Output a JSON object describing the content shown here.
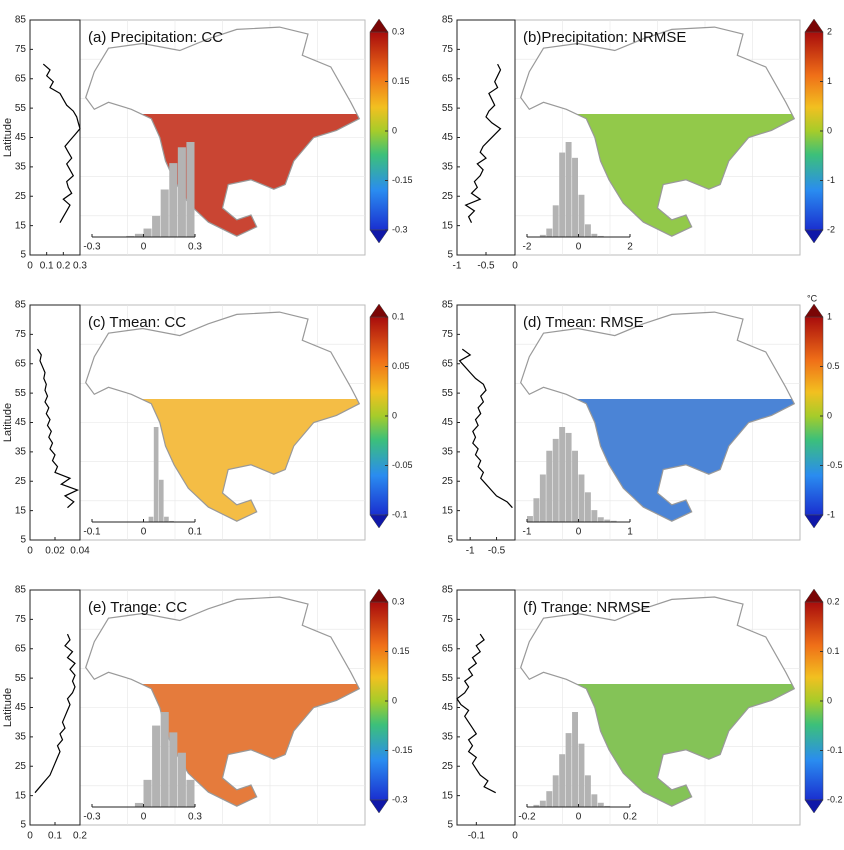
{
  "chart_data": [
    {
      "type": "map",
      "title": "(a) Precipitation: CC",
      "ylabel": "Latitude",
      "color": "#c0250f",
      "ylim": [
        5,
        85
      ],
      "yticks": [
        5,
        15,
        25,
        35,
        45,
        55,
        65,
        75,
        85
      ],
      "xlim": [
        0,
        0.3
      ],
      "xticks": [
        0,
        0.1,
        0.2,
        0.3
      ],
      "profile_lat": [
        16,
        18,
        20,
        22,
        24,
        26,
        28,
        30,
        32,
        34,
        36,
        38,
        40,
        42,
        44,
        46,
        48,
        50,
        52,
        54,
        56,
        58,
        60,
        62,
        64,
        66,
        68,
        70
      ],
      "profile_values": [
        0.18,
        0.2,
        0.22,
        0.24,
        0.2,
        0.25,
        0.23,
        0.22,
        0.26,
        0.24,
        0.22,
        0.25,
        0.23,
        0.21,
        0.24,
        0.27,
        0.3,
        0.29,
        0.28,
        0.26,
        0.22,
        0.2,
        0.18,
        0.12,
        0.14,
        0.1,
        0.12,
        0.08
      ],
      "hist_bins": [
        -0.3,
        -0.25,
        -0.2,
        -0.15,
        -0.1,
        -0.05,
        0,
        0.05,
        0.1,
        0.15,
        0.2,
        0.25,
        0.3
      ],
      "hist_counts": [
        0,
        0,
        0,
        0,
        1,
        3,
        8,
        20,
        45,
        70,
        85,
        90
      ],
      "hist_xticks": [
        -0.3,
        0,
        0.3
      ],
      "cbar_lim": [
        -0.3,
        0.3
      ],
      "cbar_ticks": [
        -0.3,
        -0.15,
        0,
        0.15,
        0.3
      ]
    },
    {
      "type": "map",
      "title": "(b)Precipitation: NRMSE",
      "color": "#7fbf2a",
      "ylim": [
        5,
        85
      ],
      "yticks": [
        5,
        15,
        25,
        35,
        45,
        55,
        65,
        75,
        85
      ],
      "xlim": [
        -1,
        0
      ],
      "xticks": [
        -1,
        -0.5,
        0
      ],
      "profile_lat": [
        16,
        18,
        20,
        22,
        24,
        26,
        28,
        30,
        32,
        34,
        36,
        38,
        40,
        42,
        44,
        46,
        48,
        50,
        52,
        54,
        56,
        58,
        60,
        62,
        64,
        66,
        68,
        70
      ],
      "profile_values": [
        -0.75,
        -0.8,
        -0.7,
        -0.85,
        -0.6,
        -0.75,
        -0.65,
        -0.7,
        -0.6,
        -0.55,
        -0.65,
        -0.5,
        -0.6,
        -0.55,
        -0.45,
        -0.35,
        -0.25,
        -0.4,
        -0.5,
        -0.45,
        -0.35,
        -0.4,
        -0.45,
        -0.3,
        -0.35,
        -0.3,
        -0.25,
        -0.3
      ],
      "hist_bins": [
        -2,
        -1.75,
        -1.5,
        -1.25,
        -1,
        -0.75,
        -0.5,
        -0.25,
        0,
        0.25,
        0.5,
        0.75,
        1,
        1.25,
        1.5,
        1.75,
        2
      ],
      "hist_counts": [
        0,
        0,
        2,
        8,
        30,
        80,
        90,
        75,
        40,
        12,
        3,
        1,
        0,
        0,
        0,
        0
      ],
      "hist_xticks": [
        -2,
        0,
        2
      ],
      "cbar_lim": [
        -2,
        2
      ],
      "cbar_ticks": [
        -2,
        -1,
        0,
        1,
        2
      ]
    },
    {
      "type": "map",
      "title": "(c) Tmean: CC",
      "ylabel": "Latitude",
      "color": "#f2b124",
      "ylim": [
        5,
        85
      ],
      "yticks": [
        5,
        15,
        25,
        35,
        45,
        55,
        65,
        75,
        85
      ],
      "xlim": [
        0,
        0.04
      ],
      "xticks": [
        0,
        0.02,
        0.04
      ],
      "profile_lat": [
        16,
        18,
        20,
        22,
        24,
        26,
        28,
        30,
        32,
        34,
        36,
        38,
        40,
        42,
        44,
        46,
        48,
        50,
        52,
        54,
        56,
        58,
        60,
        62,
        64,
        66,
        68,
        70
      ],
      "profile_values": [
        0.03,
        0.035,
        0.028,
        0.038,
        0.025,
        0.032,
        0.02,
        0.022,
        0.018,
        0.02,
        0.016,
        0.018,
        0.015,
        0.017,
        0.014,
        0.016,
        0.013,
        0.015,
        0.012,
        0.014,
        0.012,
        0.013,
        0.011,
        0.012,
        0.01,
        0.008,
        0.009,
        0.006
      ],
      "hist_bins": [
        -0.1,
        -0.09,
        -0.08,
        -0.07,
        -0.06,
        -0.05,
        -0.04,
        -0.03,
        -0.02,
        -0.01,
        0,
        0.01,
        0.02,
        0.03,
        0.04,
        0.05,
        0.06,
        0.07,
        0.08,
        0.09,
        0.1
      ],
      "hist_counts": [
        0,
        0,
        0,
        0,
        0,
        0,
        0,
        0,
        0,
        0,
        0,
        5,
        90,
        40,
        5,
        1,
        0,
        0,
        0,
        0
      ],
      "hist_xticks": [
        -0.1,
        0,
        0.1
      ],
      "cbar_lim": [
        -0.1,
        0.1
      ],
      "cbar_ticks": [
        -0.1,
        -0.05,
        0,
        0.05,
        0.1
      ]
    },
    {
      "type": "map",
      "title": "(d) Tmean: RMSE",
      "unit": "°C",
      "color": "#2c6fcf",
      "ylim": [
        5,
        85
      ],
      "yticks": [
        5,
        15,
        25,
        35,
        45,
        55,
        65,
        75,
        85
      ],
      "xlim": [
        -1.25,
        -0.15
      ],
      "xticks": [
        -1,
        -0.5
      ],
      "profile_lat": [
        16,
        18,
        20,
        22,
        24,
        26,
        28,
        30,
        32,
        34,
        36,
        38,
        40,
        42,
        44,
        46,
        48,
        50,
        52,
        54,
        56,
        58,
        60,
        62,
        64,
        66,
        68,
        70
      ],
      "profile_values": [
        -0.2,
        -0.3,
        -0.5,
        -0.6,
        -0.7,
        -0.8,
        -0.75,
        -0.85,
        -0.8,
        -0.9,
        -0.85,
        -0.95,
        -0.9,
        -0.95,
        -0.85,
        -0.9,
        -0.8,
        -0.85,
        -0.75,
        -0.8,
        -0.7,
        -0.75,
        -0.9,
        -1.0,
        -1.1,
        -1.2,
        -1.0,
        -1.15
      ],
      "hist_bins": [
        -1,
        -0.875,
        -0.75,
        -0.625,
        -0.5,
        -0.375,
        -0.25,
        -0.125,
        0,
        0.125,
        0.25,
        0.375,
        0.5,
        0.625,
        0.75,
        0.875,
        1
      ],
      "hist_counts": [
        5,
        20,
        40,
        60,
        70,
        80,
        75,
        60,
        40,
        25,
        10,
        4,
        2,
        1,
        0,
        0
      ],
      "hist_xticks": [
        -1,
        0,
        1
      ],
      "cbar_lim": [
        -1,
        1
      ],
      "cbar_ticks": [
        -1,
        -0.5,
        0,
        0.5,
        1
      ]
    },
    {
      "type": "map",
      "title": "(e) Trange: CC",
      "ylabel": "Latitude",
      "color": "#e0641a",
      "ylim": [
        5,
        85
      ],
      "yticks": [
        5,
        15,
        25,
        35,
        45,
        55,
        65,
        75,
        85
      ],
      "xlim": [
        0,
        0.2
      ],
      "xticks": [
        0,
        0.1,
        0.2
      ],
      "profile_lat": [
        16,
        18,
        20,
        22,
        24,
        26,
        28,
        30,
        32,
        34,
        36,
        38,
        40,
        42,
        44,
        46,
        48,
        50,
        52,
        54,
        56,
        58,
        60,
        62,
        64,
        66,
        68,
        70
      ],
      "profile_values": [
        0.02,
        0.04,
        0.06,
        0.08,
        0.09,
        0.1,
        0.11,
        0.12,
        0.11,
        0.13,
        0.12,
        0.14,
        0.13,
        0.14,
        0.15,
        0.16,
        0.15,
        0.17,
        0.18,
        0.17,
        0.18,
        0.16,
        0.18,
        0.15,
        0.17,
        0.14,
        0.16,
        0.15
      ],
      "hist_bins": [
        -0.3,
        -0.25,
        -0.2,
        -0.15,
        -0.1,
        -0.05,
        0,
        0.05,
        0.1,
        0.15,
        0.2,
        0.25,
        0.3
      ],
      "hist_counts": [
        0,
        0,
        0,
        0,
        0,
        3,
        20,
        60,
        70,
        55,
        40,
        20
      ],
      "hist_xticks": [
        -0.3,
        0,
        0.3
      ],
      "cbar_lim": [
        -0.3,
        0.3
      ],
      "cbar_ticks": [
        -0.3,
        -0.15,
        0,
        0.15,
        0.3
      ]
    },
    {
      "type": "map",
      "title": "(f) Trange: NRMSE",
      "color": "#6fb83a",
      "ylim": [
        5,
        85
      ],
      "yticks": [
        5,
        15,
        25,
        35,
        45,
        55,
        65,
        75,
        85
      ],
      "xlim": [
        -0.15,
        0
      ],
      "xticks": [
        -0.1,
        0
      ],
      "profile_lat": [
        16,
        18,
        20,
        22,
        24,
        26,
        28,
        30,
        32,
        34,
        36,
        38,
        40,
        42,
        44,
        46,
        48,
        50,
        52,
        54,
        56,
        58,
        60,
        62,
        64,
        66,
        68,
        70
      ],
      "profile_values": [
        -0.05,
        -0.08,
        -0.07,
        -0.09,
        -0.1,
        -0.11,
        -0.1,
        -0.12,
        -0.11,
        -0.12,
        -0.1,
        -0.11,
        -0.12,
        -0.13,
        -0.12,
        -0.14,
        -0.15,
        -0.13,
        -0.12,
        -0.13,
        -0.11,
        -0.12,
        -0.1,
        -0.11,
        -0.09,
        -0.1,
        -0.08,
        -0.09
      ],
      "hist_bins": [
        -0.2,
        -0.175,
        -0.15,
        -0.125,
        -0.1,
        -0.075,
        -0.05,
        -0.025,
        0,
        0.025,
        0.05,
        0.075,
        0.1,
        0.125,
        0.15,
        0.175,
        0.2
      ],
      "hist_counts": [
        0,
        2,
        6,
        15,
        30,
        50,
        70,
        90,
        60,
        30,
        12,
        4,
        1,
        0,
        0,
        0
      ],
      "hist_xticks": [
        -0.2,
        0,
        0.2
      ],
      "cbar_lim": [
        -0.2,
        0.2
      ],
      "cbar_ticks": [
        -0.2,
        -0.1,
        0,
        0.1,
        0.2
      ]
    }
  ]
}
